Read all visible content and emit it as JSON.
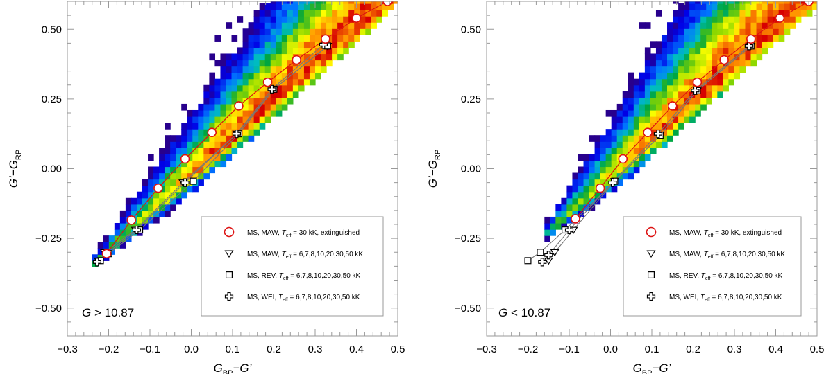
{
  "figure_caption": "",
  "chart_data": [
    {
      "type": "heatmap",
      "panel": "left",
      "xlabel": {
        "main": "G",
        "sub": "BP",
        "rest": "−G’"
      },
      "ylabel": {
        "main": "G’−G",
        "sub": "RP"
      },
      "xlim": [
        -0.3,
        0.5
      ],
      "ylim": [
        -0.6,
        0.6
      ],
      "x_ticks": [
        "−0.3",
        "−0.2",
        "−0.1",
        "0.0",
        "0.1",
        "0.2",
        "0.3",
        "0.4",
        "0.5"
      ],
      "x_tick_values": [
        -0.3,
        -0.2,
        -0.1,
        0.0,
        0.1,
        0.2,
        0.3,
        0.4,
        0.5
      ],
      "y_ticks": [
        "−0.50",
        "−0.25",
        "0.00",
        "0.25",
        "0.50"
      ],
      "y_tick_values": [
        -0.5,
        -0.25,
        0.0,
        0.25,
        0.5
      ],
      "annotation": {
        "var": "G",
        "text": " > 10.87"
      },
      "density_model": {
        "slope": 1.35,
        "intercept": -0.03,
        "spread_base": 0.02,
        "spread_growth": 0.55,
        "x_min": -0.24
      },
      "sequence_models": [
        {
          "name": "MS, MAW",
          "marker": "triangle",
          "x": [
            -0.225,
            -0.21,
            -0.135,
            -0.02,
            0.11,
            0.2,
            0.33
          ],
          "y": [
            -0.33,
            -0.3,
            -0.22,
            -0.05,
            0.125,
            0.285,
            0.44
          ]
        },
        {
          "name": "MS, REV",
          "marker": "square",
          "x": [
            -0.22,
            -0.2,
            -0.125,
            0.005,
            0.115,
            0.2,
            0.33
          ],
          "y": [
            -0.33,
            -0.305,
            -0.22,
            -0.045,
            0.125,
            0.285,
            0.44
          ]
        },
        {
          "name": "MS, WEI",
          "marker": "cross",
          "x": [
            -0.228,
            -0.205,
            -0.132,
            -0.015,
            0.11,
            0.195,
            0.32
          ],
          "y": [
            -0.335,
            -0.305,
            -0.22,
            -0.05,
            0.125,
            0.285,
            0.445
          ]
        }
      ],
      "extinguished": {
        "name": "MS, MAW, Teff = 30 kK, extinguished",
        "x": [
          -0.205,
          -0.145,
          -0.08,
          -0.015,
          0.05,
          0.115,
          0.185,
          0.255,
          0.325,
          0.4,
          0.475
        ],
        "y": [
          -0.305,
          -0.185,
          -0.07,
          0.035,
          0.13,
          0.225,
          0.31,
          0.39,
          0.465,
          0.54,
          0.6
        ]
      },
      "legend": {
        "placement": "lower-right",
        "entries": [
          {
            "marker": "circle",
            "label": "MS, MAW, ",
            "teff": "T",
            "teff_sub": "eff",
            "value": " = 30 kK, extinguished"
          },
          {
            "marker": "triangle",
            "label": "MS, MAW, ",
            "teff": "T",
            "teff_sub": "eff",
            "value": " = 6,7,8,10,20,30,50 kK"
          },
          {
            "marker": "square",
            "label": "MS, REV, ",
            "teff": "T",
            "teff_sub": "eff",
            "value": " = 6,7,8,10,20,30,50 kK"
          },
          {
            "marker": "cross",
            "label": "MS, WEI, ",
            "teff": "T",
            "teff_sub": "eff",
            "value": " = 6,7,8,10,20,30,50 kK"
          }
        ]
      },
      "colors": {
        "extinguished": "#dd1111",
        "model_line": "#777777"
      }
    },
    {
      "type": "heatmap",
      "panel": "right",
      "xlabel": {
        "main": "G",
        "sub": "BP",
        "rest": "−G’"
      },
      "ylabel": {
        "main": "G’−G",
        "sub": "RP"
      },
      "xlim": [
        -0.3,
        0.5
      ],
      "ylim": [
        -0.6,
        0.6
      ],
      "x_ticks": [
        "−0.3",
        "−0.2",
        "−0.1",
        "0.0",
        "0.1",
        "0.2",
        "0.3",
        "0.4",
        "0.5"
      ],
      "x_tick_values": [
        -0.3,
        -0.2,
        -0.1,
        0.0,
        0.1,
        0.2,
        0.3,
        0.4,
        0.5
      ],
      "y_ticks": [
        "−0.50",
        "−0.25",
        "0.00",
        "0.25",
        "0.50"
      ],
      "y_tick_values": [
        -0.5,
        -0.25,
        0.0,
        0.25,
        0.5
      ],
      "annotation": {
        "var": "G",
        "text": " < 10.87"
      },
      "density_model": {
        "slope": 1.35,
        "intercept": -0.035,
        "spread_base": 0.03,
        "spread_growth": 0.7,
        "x_min": -0.16
      },
      "sequence_models": [
        {
          "name": "MS, MAW",
          "marker": "triangle",
          "x": [
            -0.15,
            -0.135,
            -0.09,
            0.01,
            0.12,
            0.21,
            0.34
          ],
          "y": [
            -0.33,
            -0.3,
            -0.22,
            -0.045,
            0.12,
            0.28,
            0.44
          ]
        },
        {
          "name": "MS, REV",
          "marker": "square",
          "x": [
            -0.2,
            -0.17,
            -0.11,
            0.01,
            0.12,
            0.21,
            0.34
          ],
          "y": [
            -0.33,
            -0.3,
            -0.22,
            -0.045,
            0.12,
            0.28,
            0.44
          ]
        },
        {
          "name": "MS, WEI",
          "marker": "cross",
          "x": [
            -0.165,
            -0.15,
            -0.1,
            0.005,
            0.115,
            0.205,
            0.335
          ],
          "y": [
            -0.335,
            -0.31,
            -0.22,
            -0.05,
            0.125,
            0.28,
            0.44
          ]
        }
      ],
      "extinguished": {
        "name": "MS, MAW, Teff = 30 kK, extinguished",
        "x": [
          -0.085,
          -0.025,
          0.03,
          0.09,
          0.15,
          0.21,
          0.275,
          0.34,
          0.41,
          0.48
        ],
        "y": [
          -0.18,
          -0.07,
          0.035,
          0.13,
          0.225,
          0.31,
          0.39,
          0.465,
          0.54,
          0.6
        ]
      },
      "legend": {
        "placement": "lower-right",
        "entries": [
          {
            "marker": "circle",
            "label": "MS, MAW, ",
            "teff": "T",
            "teff_sub": "eff",
            "value": " = 30 kK, extinguished"
          },
          {
            "marker": "triangle",
            "label": "MS, MAW, ",
            "teff": "T",
            "teff_sub": "eff",
            "value": " = 6,7,8,10,20,30,50 kK"
          },
          {
            "marker": "square",
            "label": "MS, REV, ",
            "teff": "T",
            "teff_sub": "eff",
            "value": " = 6,7,8,10,20,30,50 kK"
          },
          {
            "marker": "cross",
            "label": "MS, WEI, ",
            "teff": "T",
            "teff_sub": "eff",
            "value": " = 6,7,8,10,20,30,50 kK"
          }
        ]
      },
      "colors": {
        "extinguished": "#dd1111",
        "model_line": "#777777"
      }
    }
  ]
}
